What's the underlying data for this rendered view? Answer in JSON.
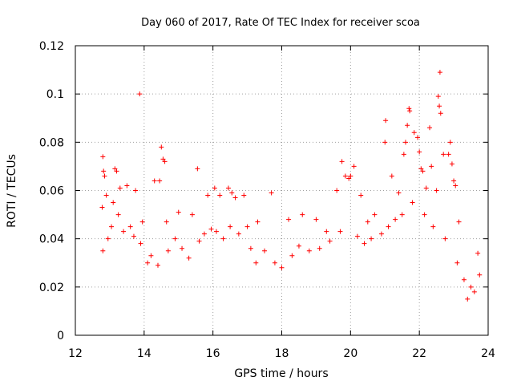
{
  "chart_data": {
    "type": "scatter",
    "title": "Day 060 of 2017, Rate Of TEC Index for receiver scoa",
    "xlabel": "GPS time / hours",
    "ylabel": "ROTI / TECUs",
    "xlim": [
      12,
      24
    ],
    "ylim": [
      0,
      0.12
    ],
    "xticks": [
      "12",
      "14",
      "16",
      "18",
      "20",
      "22",
      "24"
    ],
    "yticks": [
      "0",
      "0.02",
      "0.04",
      "0.06",
      "0.08",
      "0.1",
      "0.12"
    ],
    "grid": true,
    "marker": "plus",
    "color": "#ff0000",
    "series": [
      {
        "points": [
          [
            12.8,
            0.074
          ],
          [
            12.78,
            0.053
          ],
          [
            12.82,
            0.068
          ],
          [
            12.85,
            0.066
          ],
          [
            12.9,
            0.058
          ],
          [
            13.15,
            0.069
          ],
          [
            13.2,
            0.068
          ],
          [
            13.3,
            0.061
          ],
          [
            13.5,
            0.062
          ],
          [
            13.1,
            0.055
          ],
          [
            13.87,
            0.1
          ],
          [
            13.75,
            0.06
          ],
          [
            13.95,
            0.047
          ],
          [
            14.3,
            0.064
          ],
          [
            14.5,
            0.078
          ],
          [
            14.55,
            0.073
          ],
          [
            14.6,
            0.072
          ],
          [
            14.45,
            0.064
          ],
          [
            14.65,
            0.047
          ],
          [
            15.0,
            0.051
          ],
          [
            15.4,
            0.05
          ],
          [
            15.55,
            0.069
          ],
          [
            15.85,
            0.058
          ],
          [
            16.05,
            0.061
          ],
          [
            16.2,
            0.058
          ],
          [
            16.45,
            0.061
          ],
          [
            16.55,
            0.059
          ],
          [
            16.65,
            0.057
          ],
          [
            16.9,
            0.058
          ],
          [
            17.0,
            0.045
          ],
          [
            17.3,
            0.047
          ],
          [
            17.7,
            0.059
          ],
          [
            18.2,
            0.048
          ],
          [
            18.6,
            0.05
          ],
          [
            19.0,
            0.048
          ],
          [
            19.3,
            0.043
          ],
          [
            19.6,
            0.06
          ],
          [
            19.75,
            0.072
          ],
          [
            19.85,
            0.066
          ],
          [
            19.95,
            0.065
          ],
          [
            20.0,
            0.066
          ],
          [
            20.1,
            0.07
          ],
          [
            20.3,
            0.058
          ],
          [
            20.5,
            0.047
          ],
          [
            20.7,
            0.05
          ],
          [
            21.02,
            0.089
          ],
          [
            21.0,
            0.08
          ],
          [
            21.2,
            0.066
          ],
          [
            21.4,
            0.059
          ],
          [
            21.55,
            0.075
          ],
          [
            21.6,
            0.08
          ],
          [
            21.7,
            0.094
          ],
          [
            21.72,
            0.093
          ],
          [
            21.65,
            0.087
          ],
          [
            21.85,
            0.084
          ],
          [
            21.95,
            0.082
          ],
          [
            22.0,
            0.076
          ],
          [
            22.05,
            0.069
          ],
          [
            22.1,
            0.068
          ],
          [
            22.2,
            0.061
          ],
          [
            22.3,
            0.086
          ],
          [
            22.35,
            0.07
          ],
          [
            22.5,
            0.06
          ],
          [
            22.55,
            0.099
          ],
          [
            22.6,
            0.109
          ],
          [
            22.58,
            0.095
          ],
          [
            22.62,
            0.092
          ],
          [
            22.7,
            0.075
          ],
          [
            22.85,
            0.075
          ],
          [
            22.9,
            0.08
          ],
          [
            22.95,
            0.071
          ],
          [
            23.0,
            0.064
          ],
          [
            23.05,
            0.062
          ],
          [
            23.15,
            0.047
          ],
          [
            23.3,
            0.023
          ],
          [
            23.5,
            0.02
          ],
          [
            23.7,
            0.034
          ],
          [
            23.75,
            0.025
          ],
          [
            12.8,
            0.035
          ],
          [
            12.95,
            0.04
          ],
          [
            13.05,
            0.045
          ],
          [
            13.25,
            0.05
          ],
          [
            13.4,
            0.043
          ],
          [
            13.6,
            0.045
          ],
          [
            13.7,
            0.041
          ],
          [
            13.9,
            0.038
          ],
          [
            14.1,
            0.03
          ],
          [
            14.2,
            0.033
          ],
          [
            14.4,
            0.029
          ],
          [
            14.7,
            0.035
          ],
          [
            14.9,
            0.04
          ],
          [
            15.1,
            0.036
          ],
          [
            15.3,
            0.032
          ],
          [
            15.6,
            0.039
          ],
          [
            15.75,
            0.042
          ],
          [
            15.95,
            0.044
          ],
          [
            16.1,
            0.043
          ],
          [
            16.3,
            0.04
          ],
          [
            16.5,
            0.045
          ],
          [
            16.75,
            0.042
          ],
          [
            17.1,
            0.036
          ],
          [
            17.25,
            0.03
          ],
          [
            17.5,
            0.035
          ],
          [
            17.8,
            0.03
          ],
          [
            18.0,
            0.028
          ],
          [
            18.3,
            0.033
          ],
          [
            18.5,
            0.037
          ],
          [
            18.8,
            0.035
          ],
          [
            19.1,
            0.036
          ],
          [
            19.4,
            0.039
          ],
          [
            19.7,
            0.043
          ],
          [
            20.2,
            0.041
          ],
          [
            20.4,
            0.038
          ],
          [
            20.6,
            0.04
          ],
          [
            20.9,
            0.042
          ],
          [
            21.1,
            0.045
          ],
          [
            21.3,
            0.048
          ],
          [
            21.5,
            0.05
          ],
          [
            21.8,
            0.055
          ],
          [
            22.15,
            0.05
          ],
          [
            22.4,
            0.045
          ],
          [
            22.75,
            0.04
          ],
          [
            23.1,
            0.03
          ],
          [
            23.4,
            0.015
          ],
          [
            23.6,
            0.018
          ]
        ]
      }
    ]
  }
}
